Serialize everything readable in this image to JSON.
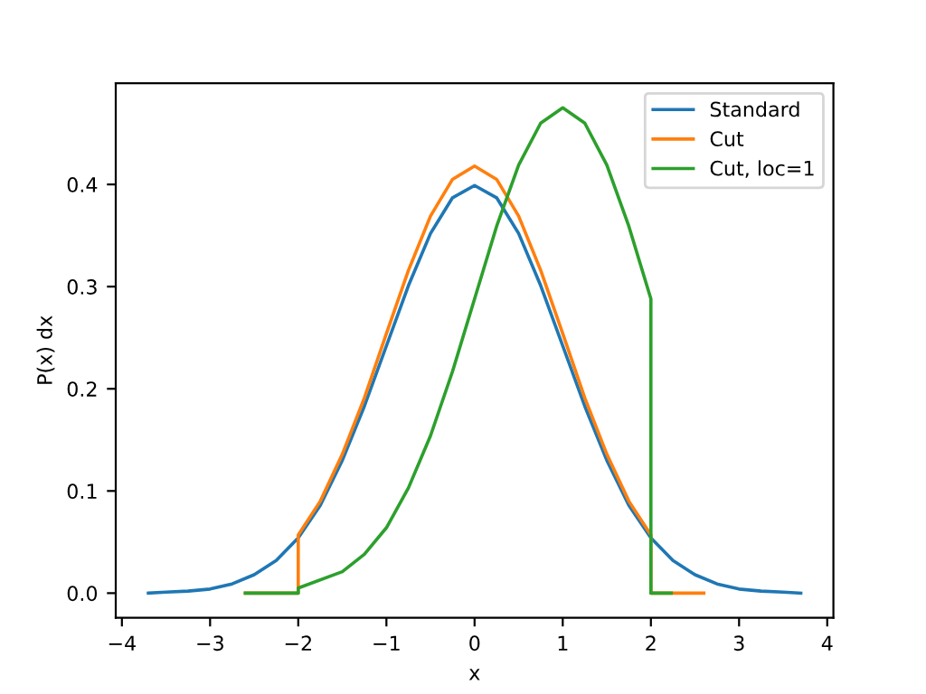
{
  "chart_data": {
    "type": "line",
    "xlabel": "x",
    "ylabel": "P(x) dx",
    "xlim": [
      -4.07,
      4.07
    ],
    "xticks": [
      {
        "value": -4,
        "label": "−4"
      },
      {
        "value": -3,
        "label": "−3"
      },
      {
        "value": -2,
        "label": "−2"
      },
      {
        "value": -1,
        "label": "−1"
      },
      0,
      1,
      2,
      3,
      4
    ],
    "ylim": [
      -0.024,
      0.499
    ],
    "yticks": [
      {
        "value": 0,
        "label": "0.0"
      },
      0.1,
      0.2,
      0.3,
      0.4
    ],
    "grid": false,
    "legend": "top right",
    "line_style": "solid",
    "marker": "none",
    "series": [
      {
        "name": "Standard",
        "color": "#1f77b4",
        "x": [
          -3.7,
          -3.5,
          -3.25,
          -3,
          -2.75,
          -2.5,
          -2.25,
          -2,
          -1.75,
          -1.5,
          -1.25,
          -1,
          -0.75,
          -0.5,
          -0.25,
          0,
          0.25,
          0.5,
          0.75,
          1,
          1.25,
          1.5,
          1.75,
          2,
          2.25,
          2.5,
          2.75,
          3,
          3.25,
          3.5,
          3.7
        ],
        "values": [
          0.0,
          0.001,
          0.002,
          0.004,
          0.009,
          0.018,
          0.032,
          0.054,
          0.086,
          0.13,
          0.183,
          0.242,
          0.301,
          0.352,
          0.387,
          0.399,
          0.387,
          0.352,
          0.301,
          0.242,
          0.183,
          0.13,
          0.086,
          0.054,
          0.032,
          0.018,
          0.009,
          0.004,
          0.002,
          0.001,
          0.0
        ]
      },
      {
        "name": "Cut",
        "color": "#ff7f0e",
        "x": [
          -2.6,
          -2,
          -2,
          -1.75,
          -1.5,
          -1.25,
          -1,
          -0.75,
          -0.5,
          -0.25,
          0,
          0.25,
          0.5,
          0.75,
          1,
          1.25,
          1.5,
          1.75,
          2,
          2,
          2.6
        ],
        "values": [
          0,
          0,
          0.057,
          0.09,
          0.136,
          0.191,
          0.254,
          0.316,
          0.369,
          0.405,
          0.418,
          0.405,
          0.369,
          0.316,
          0.254,
          0.191,
          0.136,
          0.09,
          0.057,
          0,
          0
        ]
      },
      {
        "name": "Cut, loc=1",
        "color": "#2ca02c",
        "x": [
          -2.6,
          -2,
          -2,
          -1.5,
          -1.25,
          -1,
          -0.75,
          -0.5,
          -0.25,
          0,
          0.25,
          0.5,
          0.75,
          1,
          1.25,
          1.5,
          1.75,
          2,
          2,
          2.23
        ],
        "values": [
          0,
          0,
          0.005,
          0.021,
          0.038,
          0.064,
          0.103,
          0.154,
          0.217,
          0.288,
          0.359,
          0.419,
          0.46,
          0.475,
          0.46,
          0.419,
          0.359,
          0.288,
          0,
          0
        ]
      }
    ]
  }
}
